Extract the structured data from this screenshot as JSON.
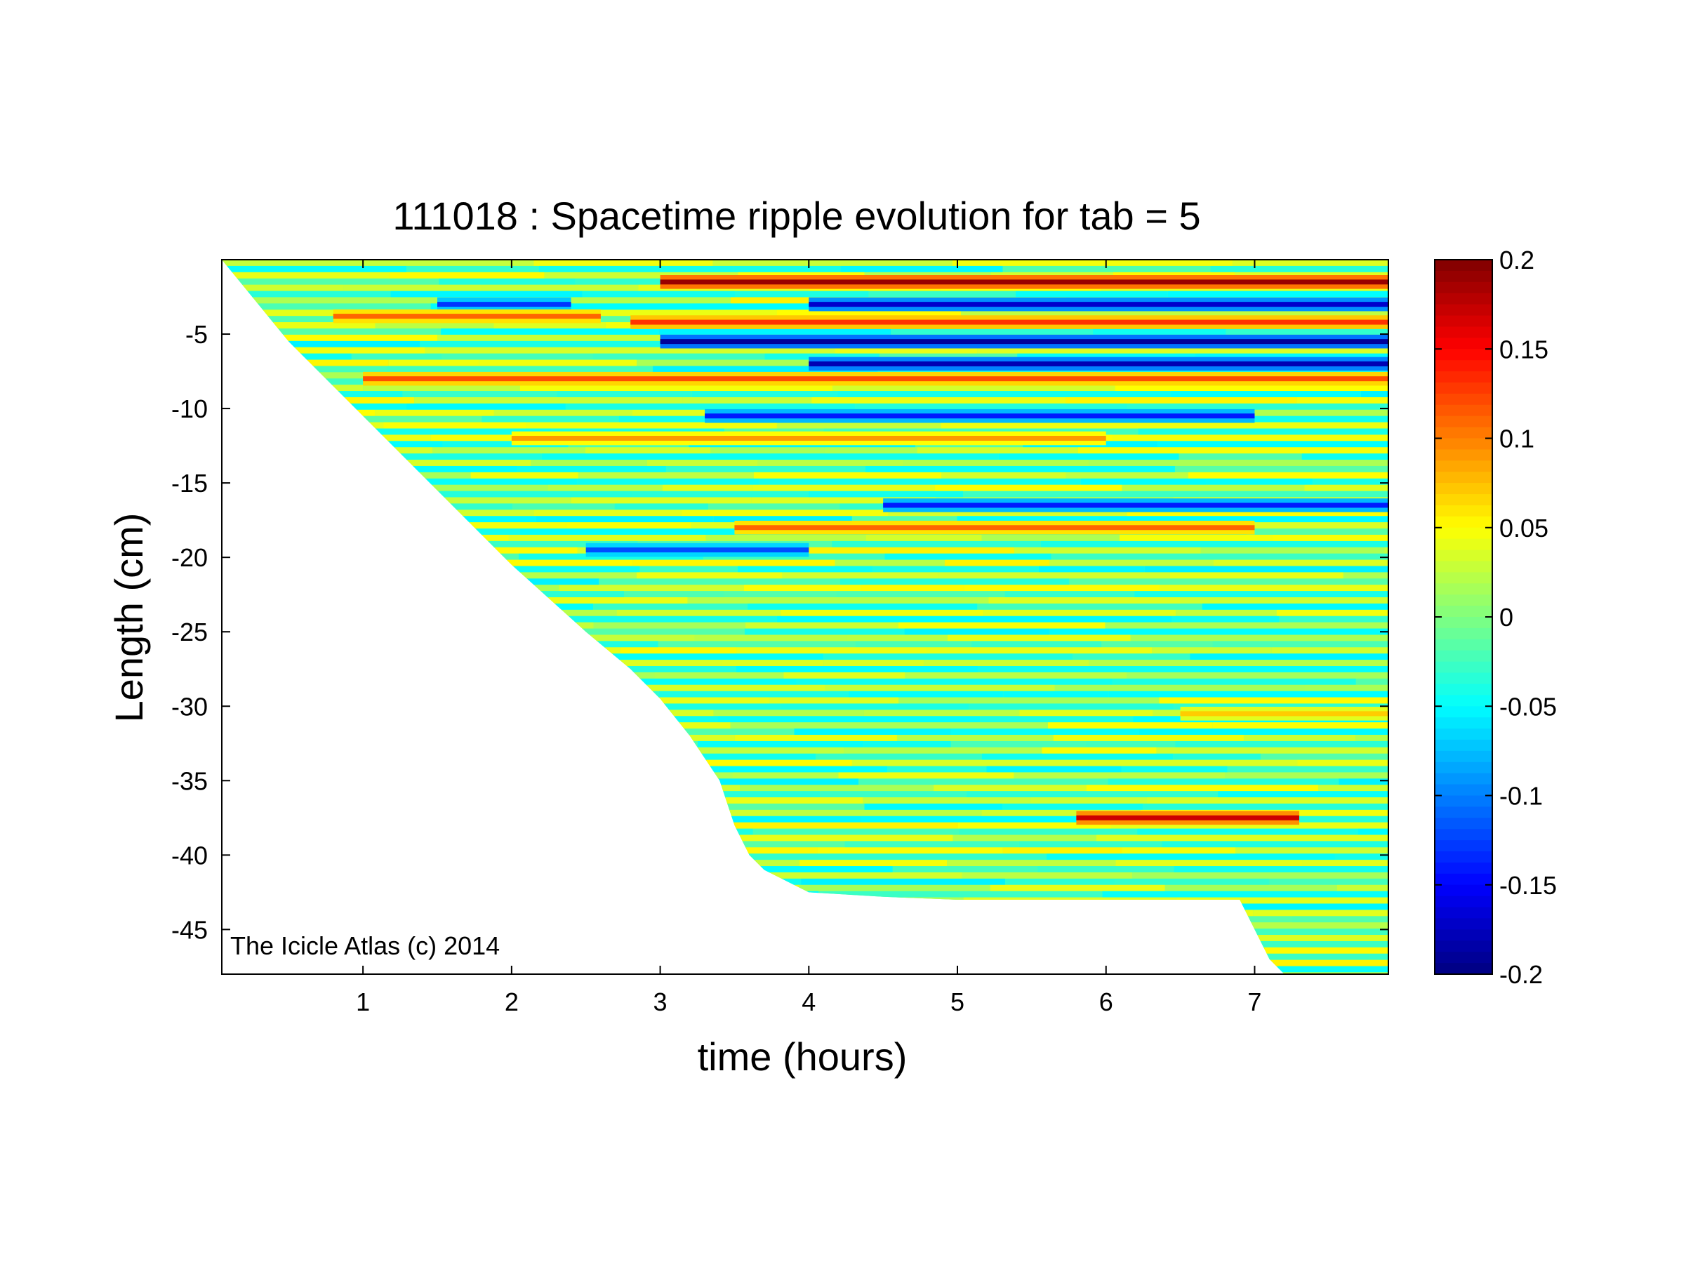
{
  "chart_data": {
    "type": "heatmap",
    "title": "111018 : Spacetime ripple evolution for tab = 5",
    "xlabel": "time (hours)",
    "ylabel": "Length (cm)",
    "xlim": [
      0.05,
      7.9
    ],
    "ylim": [
      -48,
      0
    ],
    "x_ticks": [
      1,
      2,
      3,
      4,
      5,
      6,
      7
    ],
    "x_tick_labels": [
      "1",
      "2",
      "3",
      "4",
      "5",
      "6",
      "7"
    ],
    "y_ticks": [
      -5,
      -10,
      -15,
      -20,
      -25,
      -30,
      -35,
      -40,
      -45
    ],
    "y_tick_labels": [
      "-5",
      "-10",
      "-15",
      "-20",
      "-25",
      "-30",
      "-35",
      "-40",
      "-45"
    ],
    "colorbar": {
      "colormap": "jet",
      "clim": [
        -0.2,
        0.2
      ],
      "ticks": [
        0.2,
        0.15,
        0.1,
        0.05,
        0,
        -0.05,
        -0.1,
        -0.15,
        -0.2
      ],
      "tick_labels": [
        "0.2",
        "0.15",
        "0.1",
        "0.05",
        "0",
        "-0.05",
        "-0.1",
        "-0.15",
        "-0.2"
      ]
    },
    "data_boundary": {
      "description_units": "time (hours) vs lower edge of data (cm)",
      "time": [
        0.05,
        0.5,
        1.0,
        1.5,
        2.0,
        2.5,
        2.8,
        3.0,
        3.2,
        3.4,
        3.45,
        3.5,
        3.6,
        3.7,
        4.0,
        4.5,
        5.0,
        6.0,
        6.9,
        7.0,
        7.1,
        7.2,
        7.9
      ],
      "length": [
        0,
        -5.5,
        -10.5,
        -15.5,
        -20.5,
        -25,
        -27.5,
        -29.5,
        -32,
        -35,
        -36.5,
        -38,
        -40,
        -41,
        -42.5,
        -42.8,
        -43,
        -43,
        -43,
        -45,
        -47,
        -48,
        -48
      ]
    },
    "notable_features": [
      {
        "sign": "positive",
        "time": [
          3.0,
          7.9
        ],
        "length": -1.5,
        "amplitude": 0.19
      },
      {
        "sign": "negative",
        "time": [
          4.0,
          7.9
        ],
        "length": -3.0,
        "amplitude": -0.17
      },
      {
        "sign": "negative",
        "time": [
          1.5,
          2.4
        ],
        "length": -3.0,
        "amplitude": -0.13
      },
      {
        "sign": "positive",
        "time": [
          0.8,
          2.6
        ],
        "length": -3.8,
        "amplitude": 0.11
      },
      {
        "sign": "positive",
        "time": [
          2.8,
          7.9
        ],
        "length": -4.2,
        "amplitude": 0.13
      },
      {
        "sign": "negative",
        "time": [
          3.0,
          7.9
        ],
        "length": -5.5,
        "amplitude": -0.19
      },
      {
        "sign": "negative",
        "time": [
          4.0,
          7.9
        ],
        "length": -7.0,
        "amplitude": -0.18
      },
      {
        "sign": "positive",
        "time": [
          1.0,
          7.9
        ],
        "length": -8.0,
        "amplitude": 0.12
      },
      {
        "sign": "negative",
        "time": [
          3.3,
          7.0
        ],
        "length": -10.5,
        "amplitude": -0.14
      },
      {
        "sign": "positive",
        "time": [
          2.0,
          6.0
        ],
        "length": -12.0,
        "amplitude": 0.09
      },
      {
        "sign": "negative",
        "time": [
          4.5,
          7.9
        ],
        "length": -16.5,
        "amplitude": -0.14
      },
      {
        "sign": "positive",
        "time": [
          3.5,
          7.0
        ],
        "length": -18.0,
        "amplitude": 0.11
      },
      {
        "sign": "negative",
        "time": [
          2.5,
          4.0
        ],
        "length": -19.5,
        "amplitude": -0.12
      },
      {
        "sign": "positive",
        "time": [
          5.8,
          7.3
        ],
        "length": -37.5,
        "amplitude": 0.17
      },
      {
        "sign": "positive",
        "time": [
          6.5,
          7.9
        ],
        "length": -30.5,
        "amplitude": 0.07
      }
    ]
  },
  "watermark": "The Icicle Atlas (c) 2014"
}
